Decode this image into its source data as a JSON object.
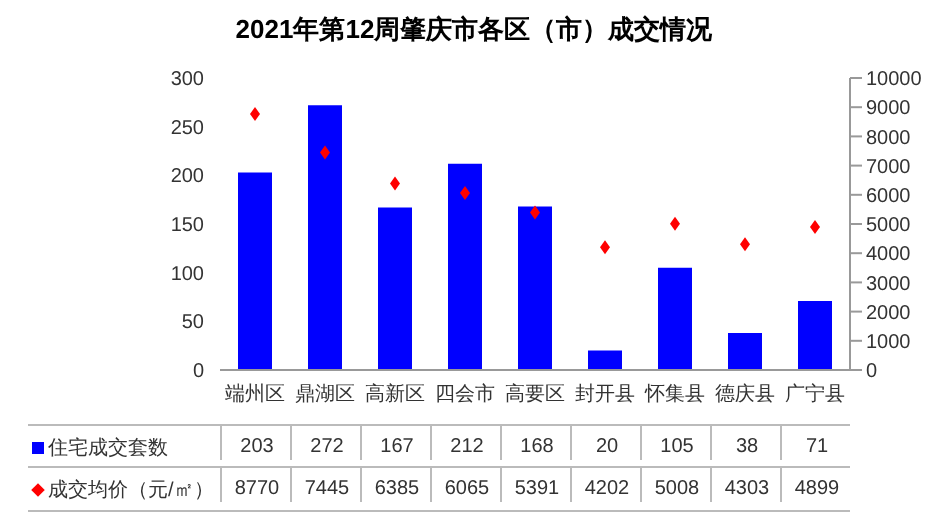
{
  "chart_data": {
    "type": "bar",
    "title": "2021年第12周肇庆市各区（市）成交情况",
    "categories": [
      "端州区",
      "鼎湖区",
      "高新区",
      "四会市",
      "高要区",
      "封开县",
      "怀集县",
      "德庆县",
      "广宁县"
    ],
    "series": [
      {
        "name": "住宅成交套数",
        "color": "#0000ff",
        "values": [
          203,
          272,
          167,
          212,
          168,
          20,
          105,
          38,
          71
        ]
      },
      {
        "name": "成交均价（元/㎡）",
        "color": "#ff0000",
        "type": "scatter",
        "axis": "y2",
        "values": [
          8770,
          7445,
          6385,
          6065,
          5391,
          4202,
          5008,
          4303,
          4899
        ]
      }
    ],
    "ylim": [
      0,
      300
    ],
    "yticks": [
      0,
      50,
      100,
      150,
      200,
      250,
      300
    ],
    "y2lim": [
      0,
      10000
    ],
    "y2ticks": [
      0,
      1000,
      2000,
      3000,
      4000,
      5000,
      6000,
      7000,
      8000,
      9000,
      10000
    ],
    "marker": "diamond",
    "data_labels": true,
    "legend": "bottom"
  }
}
